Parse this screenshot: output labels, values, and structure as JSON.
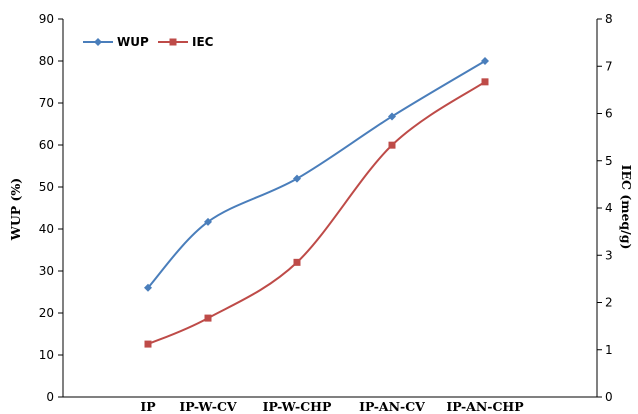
{
  "chart_data": {
    "type": "line",
    "categories": [
      "IP",
      "IP-W-CV",
      "IP-W-CHP",
      "IP-AN-CV",
      "IP-AN-CHP"
    ],
    "series": [
      {
        "name": "WUP",
        "axis": "left",
        "values": [
          26,
          41.7,
          52,
          66.8,
          80
        ],
        "color": "#4a7ebb",
        "marker": "diamond"
      },
      {
        "name": "IEC",
        "axis": "right",
        "values": [
          1.12,
          1.67,
          2.85,
          5.33,
          6.67
        ],
        "color": "#be4b48",
        "marker": "square"
      }
    ],
    "ylabel": "WUP (%)",
    "ylabel_right": "IEC (meq/g)",
    "ylim": [
      0,
      90
    ],
    "ylim_right": [
      0,
      8
    ],
    "yticks": [
      "0",
      "10",
      "20",
      "30",
      "40",
      "50",
      "60",
      "70",
      "80",
      "90"
    ],
    "yticks_right": [
      "0",
      "1",
      "2",
      "3",
      "4",
      "5",
      "6",
      "7",
      "8"
    ],
    "grid": false,
    "legend_position": "top-left",
    "smooth": true
  }
}
